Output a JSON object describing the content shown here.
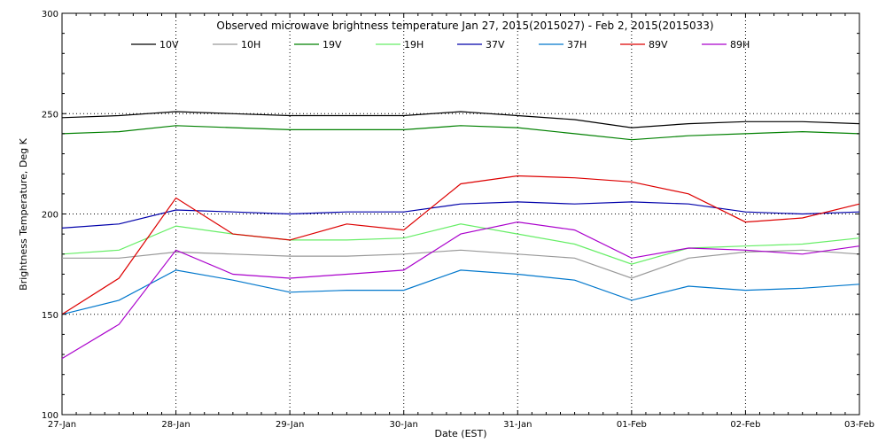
{
  "chart_data": {
    "type": "line",
    "title": "Observed microwave brightness temperature Jan 27, 2015(2015027) - Feb  2, 2015(2015033)",
    "xlabel": "Date (EST)",
    "ylabel": "Brightness Temperature, Deg K",
    "xlim": [
      "2015-01-27T00:00",
      "2015-02-03T00:00"
    ],
    "ylim": [
      100,
      300
    ],
    "yticks": [
      100,
      150,
      200,
      250,
      300
    ],
    "xticks": [
      {
        "value": "2015-01-27T00:00",
        "label": "27-Jan"
      },
      {
        "value": "2015-01-28T00:00",
        "label": "28-Jan"
      },
      {
        "value": "2015-01-29T00:00",
        "label": "29-Jan"
      },
      {
        "value": "2015-01-30T00:00",
        "label": "30-Jan"
      },
      {
        "value": "2015-01-31T00:00",
        "label": "31-Jan"
      },
      {
        "value": "2015-02-01T00:00",
        "label": "01-Feb"
      },
      {
        "value": "2015-02-02T00:00",
        "label": "02-Feb"
      },
      {
        "value": "2015-02-03T00:00",
        "label": "03-Feb"
      }
    ],
    "grid": true,
    "legend_position": "top",
    "x": [
      "2015-01-27T00:00",
      "2015-01-27T12:00",
      "2015-01-28T00:00",
      "2015-01-28T12:00",
      "2015-01-29T00:00",
      "2015-01-29T12:00",
      "2015-01-30T00:00",
      "2015-01-30T12:00",
      "2015-01-31T00:00",
      "2015-01-31T12:00",
      "2015-02-01T00:00",
      "2015-02-01T12:00",
      "2015-02-02T00:00",
      "2015-02-02T12:00",
      "2015-02-03T00:00"
    ],
    "series": [
      {
        "name": "10V",
        "color": "#000000",
        "values": [
          248,
          249,
          251,
          250,
          249,
          249,
          249,
          251,
          249,
          247,
          243,
          245,
          246,
          246,
          245
        ]
      },
      {
        "name": "10H",
        "color": "#999999",
        "values": [
          178,
          178,
          181,
          180,
          179,
          179,
          180,
          182,
          180,
          178,
          168,
          178,
          181,
          182,
          180
        ]
      },
      {
        "name": "19V",
        "color": "#008000",
        "values": [
          240,
          241,
          244,
          243,
          242,
          242,
          242,
          244,
          243,
          240,
          237,
          239,
          240,
          241,
          240
        ]
      },
      {
        "name": "19H",
        "color": "#66ee66",
        "values": [
          180,
          182,
          194,
          190,
          187,
          187,
          188,
          195,
          190,
          185,
          175,
          183,
          184,
          185,
          188
        ]
      },
      {
        "name": "37V",
        "color": "#0000aa",
        "values": [
          193,
          195,
          202,
          201,
          200,
          201,
          201,
          205,
          206,
          205,
          206,
          205,
          201,
          200,
          201
        ]
      },
      {
        "name": "37H",
        "color": "#0077cc",
        "values": [
          150,
          157,
          172,
          167,
          161,
          162,
          162,
          172,
          170,
          167,
          157,
          164,
          162,
          163,
          165
        ]
      },
      {
        "name": "89V",
        "color": "#dd0000",
        "values": [
          150,
          168,
          208,
          190,
          187,
          195,
          192,
          215,
          219,
          218,
          216,
          210,
          196,
          198,
          205
        ]
      },
      {
        "name": "89H",
        "color": "#aa00cc",
        "values": [
          128,
          145,
          182,
          170,
          168,
          170,
          172,
          190,
          196,
          192,
          178,
          183,
          182,
          180,
          184
        ]
      }
    ]
  }
}
